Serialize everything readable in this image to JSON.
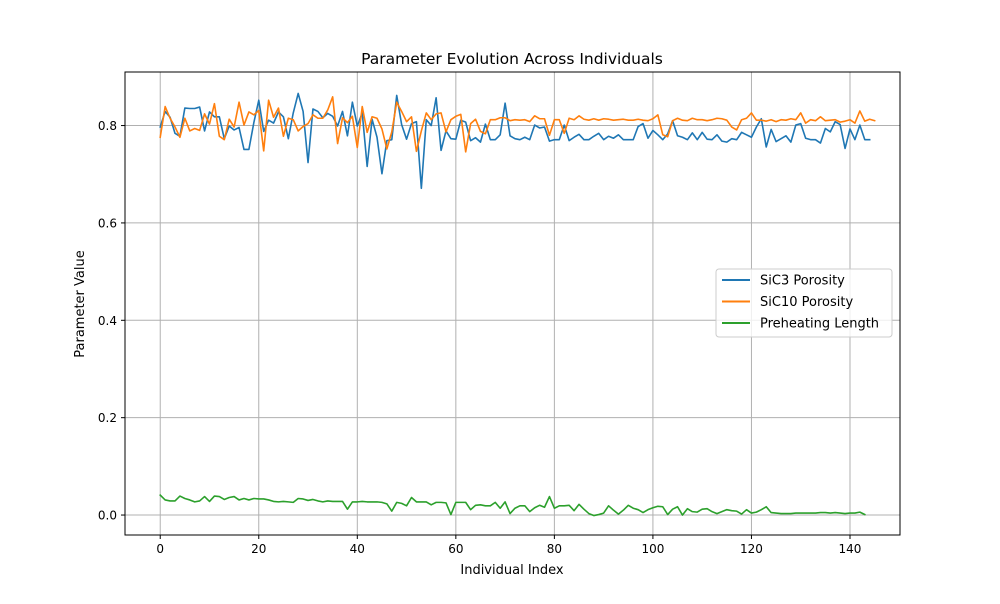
{
  "chart_data": {
    "type": "line",
    "title": "Parameter Evolution Across Individuals",
    "xlabel": "Individual Index",
    "ylabel": "Parameter Value",
    "xlim": [
      -7.15,
      150.15
    ],
    "ylim": [
      -0.041,
      0.91
    ],
    "xticks": [
      0,
      20,
      40,
      60,
      80,
      100,
      120,
      140
    ],
    "yticks": [
      0.0,
      0.2,
      0.4,
      0.6,
      0.8
    ],
    "xtick_labels": [
      "0",
      "20",
      "40",
      "60",
      "80",
      "100",
      "120",
      "140"
    ],
    "ytick_labels": [
      "0.0",
      "0.2",
      "0.4",
      "0.6",
      "0.8"
    ],
    "grid": true,
    "legend_position": "center-right",
    "series": [
      {
        "name": "SiC3 Porosity",
        "color": "#1f77b4",
        "x_start": 0,
        "values": [
          0.797,
          0.829,
          0.817,
          0.784,
          0.778,
          0.836,
          0.835,
          0.835,
          0.838,
          0.789,
          0.828,
          0.818,
          0.818,
          0.773,
          0.799,
          0.791,
          0.796,
          0.751,
          0.751,
          0.806,
          0.852,
          0.788,
          0.811,
          0.805,
          0.828,
          0.818,
          0.773,
          0.826,
          0.866,
          0.829,
          0.724,
          0.834,
          0.829,
          0.816,
          0.825,
          0.819,
          0.799,
          0.829,
          0.779,
          0.848,
          0.799,
          0.826,
          0.716,
          0.813,
          0.776,
          0.701,
          0.769,
          0.771,
          0.862,
          0.802,
          0.772,
          0.804,
          0.808,
          0.671,
          0.812,
          0.8,
          0.857,
          0.749,
          0.789,
          0.773,
          0.772,
          0.811,
          0.807,
          0.769,
          0.775,
          0.766,
          0.803,
          0.771,
          0.771,
          0.781,
          0.846,
          0.779,
          0.773,
          0.771,
          0.776,
          0.771,
          0.801,
          0.795,
          0.797,
          0.768,
          0.771,
          0.771,
          0.801,
          0.769,
          0.776,
          0.782,
          0.771,
          0.771,
          0.778,
          0.784,
          0.771,
          0.778,
          0.774,
          0.781,
          0.771,
          0.771,
          0.771,
          0.798,
          0.804,
          0.774,
          0.79,
          0.781,
          0.771,
          0.783,
          0.81,
          0.779,
          0.776,
          0.771,
          0.785,
          0.771,
          0.786,
          0.772,
          0.771,
          0.781,
          0.768,
          0.766,
          0.773,
          0.771,
          0.786,
          0.781,
          0.776,
          0.797,
          0.814,
          0.756,
          0.792,
          0.767,
          0.773,
          0.779,
          0.766,
          0.801,
          0.804,
          0.774,
          0.771,
          0.771,
          0.764,
          0.794,
          0.787,
          0.808,
          0.802,
          0.753,
          0.793,
          0.771,
          0.801,
          0.771,
          0.771
        ]
      },
      {
        "name": "SiC10 Porosity",
        "color": "#ff7f0e",
        "x_start": 0,
        "values": [
          0.776,
          0.839,
          0.815,
          0.797,
          0.776,
          0.815,
          0.789,
          0.794,
          0.79,
          0.824,
          0.803,
          0.845,
          0.778,
          0.771,
          0.813,
          0.797,
          0.848,
          0.801,
          0.828,
          0.822,
          0.831,
          0.748,
          0.852,
          0.817,
          0.836,
          0.778,
          0.815,
          0.812,
          0.789,
          0.798,
          0.804,
          0.822,
          0.815,
          0.815,
          0.832,
          0.859,
          0.763,
          0.816,
          0.806,
          0.819,
          0.755,
          0.839,
          0.786,
          0.818,
          0.815,
          0.793,
          0.752,
          0.787,
          0.848,
          0.829,
          0.808,
          0.818,
          0.747,
          0.789,
          0.826,
          0.812,
          0.824,
          0.826,
          0.787,
          0.812,
          0.819,
          0.823,
          0.746,
          0.804,
          0.813,
          0.788,
          0.783,
          0.812,
          0.812,
          0.816,
          0.816,
          0.81,
          0.812,
          0.811,
          0.812,
          0.808,
          0.82,
          0.814,
          0.814,
          0.78,
          0.812,
          0.812,
          0.784,
          0.815,
          0.812,
          0.82,
          0.813,
          0.811,
          0.814,
          0.811,
          0.814,
          0.813,
          0.811,
          0.812,
          0.813,
          0.811,
          0.811,
          0.813,
          0.811,
          0.81,
          0.814,
          0.822,
          0.781,
          0.777,
          0.81,
          0.815,
          0.811,
          0.81,
          0.815,
          0.812,
          0.812,
          0.81,
          0.812,
          0.815,
          0.814,
          0.811,
          0.797,
          0.791,
          0.812,
          0.815,
          0.826,
          0.811,
          0.811,
          0.809,
          0.812,
          0.808,
          0.812,
          0.811,
          0.814,
          0.812,
          0.826,
          0.805,
          0.812,
          0.81,
          0.818,
          0.81,
          0.811,
          0.812,
          0.807,
          0.809,
          0.812,
          0.805,
          0.83,
          0.809,
          0.813,
          0.81
        ]
      },
      {
        "name": "Preheating Length",
        "color": "#2ca02c",
        "x_start": 0,
        "values": [
          0.041,
          0.031,
          0.029,
          0.029,
          0.039,
          0.034,
          0.031,
          0.027,
          0.029,
          0.038,
          0.028,
          0.039,
          0.038,
          0.032,
          0.036,
          0.038,
          0.031,
          0.034,
          0.031,
          0.034,
          0.033,
          0.033,
          0.031,
          0.028,
          0.027,
          0.028,
          0.027,
          0.026,
          0.034,
          0.033,
          0.03,
          0.032,
          0.029,
          0.027,
          0.029,
          0.028,
          0.028,
          0.028,
          0.012,
          0.027,
          0.027,
          0.028,
          0.027,
          0.027,
          0.027,
          0.026,
          0.023,
          0.008,
          0.026,
          0.024,
          0.019,
          0.036,
          0.027,
          0.027,
          0.027,
          0.021,
          0.026,
          0.026,
          0.025,
          0.001,
          0.026,
          0.026,
          0.026,
          0.011,
          0.02,
          0.021,
          0.019,
          0.019,
          0.026,
          0.014,
          0.027,
          0.003,
          0.014,
          0.019,
          0.019,
          0.007,
          0.015,
          0.02,
          0.016,
          0.038,
          0.014,
          0.019,
          0.019,
          0.02,
          0.009,
          0.022,
          0.012,
          0.003,
          -0.001,
          0.001,
          0.004,
          0.019,
          0.01,
          0.002,
          0.01,
          0.02,
          0.014,
          0.011,
          0.005,
          0.011,
          0.015,
          0.018,
          0.017,
          0.001,
          0.012,
          0.017,
          0.0,
          0.013,
          0.007,
          0.006,
          0.012,
          0.013,
          0.007,
          0.003,
          0.007,
          0.011,
          0.009,
          0.008,
          0.002,
          0.011,
          0.004,
          0.006,
          0.011,
          0.017,
          0.005,
          0.004,
          0.003,
          0.003,
          0.003,
          0.004,
          0.004,
          0.004,
          0.004,
          0.004,
          0.005,
          0.005,
          0.004,
          0.005,
          0.004,
          0.003,
          0.004,
          0.004,
          0.006,
          0.001
        ]
      }
    ]
  }
}
